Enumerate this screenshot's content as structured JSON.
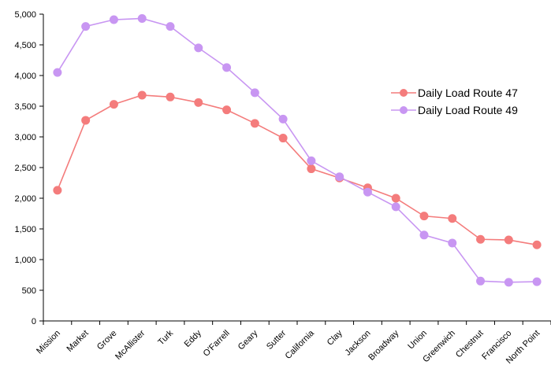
{
  "chart_data": {
    "type": "line",
    "title": "",
    "xlabel": "",
    "ylabel": "",
    "categories": [
      "Mission",
      "Market",
      "Grove",
      "McAllister",
      "Turk",
      "Eddy",
      "O'Farrell",
      "Geary",
      "Sutter",
      "California",
      "Clay",
      "Jackson",
      "Broadway",
      "Union",
      "Greenwich",
      "Chestnut",
      "Francisco",
      "North Point"
    ],
    "ylim": [
      0,
      5000
    ],
    "yticks": [
      0,
      500,
      1000,
      1500,
      2000,
      2500,
      3000,
      3500,
      4000,
      4500,
      5000
    ],
    "ytick_labels": [
      "0",
      "500",
      "1,000",
      "1,500",
      "2,000",
      "2,500",
      "3,000",
      "3,500",
      "4,000",
      "4,500",
      "5,000"
    ],
    "grid": false,
    "legend_position": "right",
    "series": [
      {
        "name": "Daily Load Route 47",
        "color": "#f47c7c",
        "values": [
          2130,
          3270,
          3530,
          3680,
          3650,
          3560,
          3440,
          3220,
          2980,
          2480,
          2330,
          2170,
          2000,
          1710,
          1670,
          1330,
          1320,
          1240
        ]
      },
      {
        "name": "Daily Load Route 49",
        "color": "#c896f2",
        "values": [
          4050,
          4800,
          4910,
          4930,
          4800,
          4450,
          4130,
          3720,
          3290,
          2610,
          2350,
          2100,
          1860,
          1400,
          1270,
          650,
          630,
          640
        ]
      }
    ]
  }
}
